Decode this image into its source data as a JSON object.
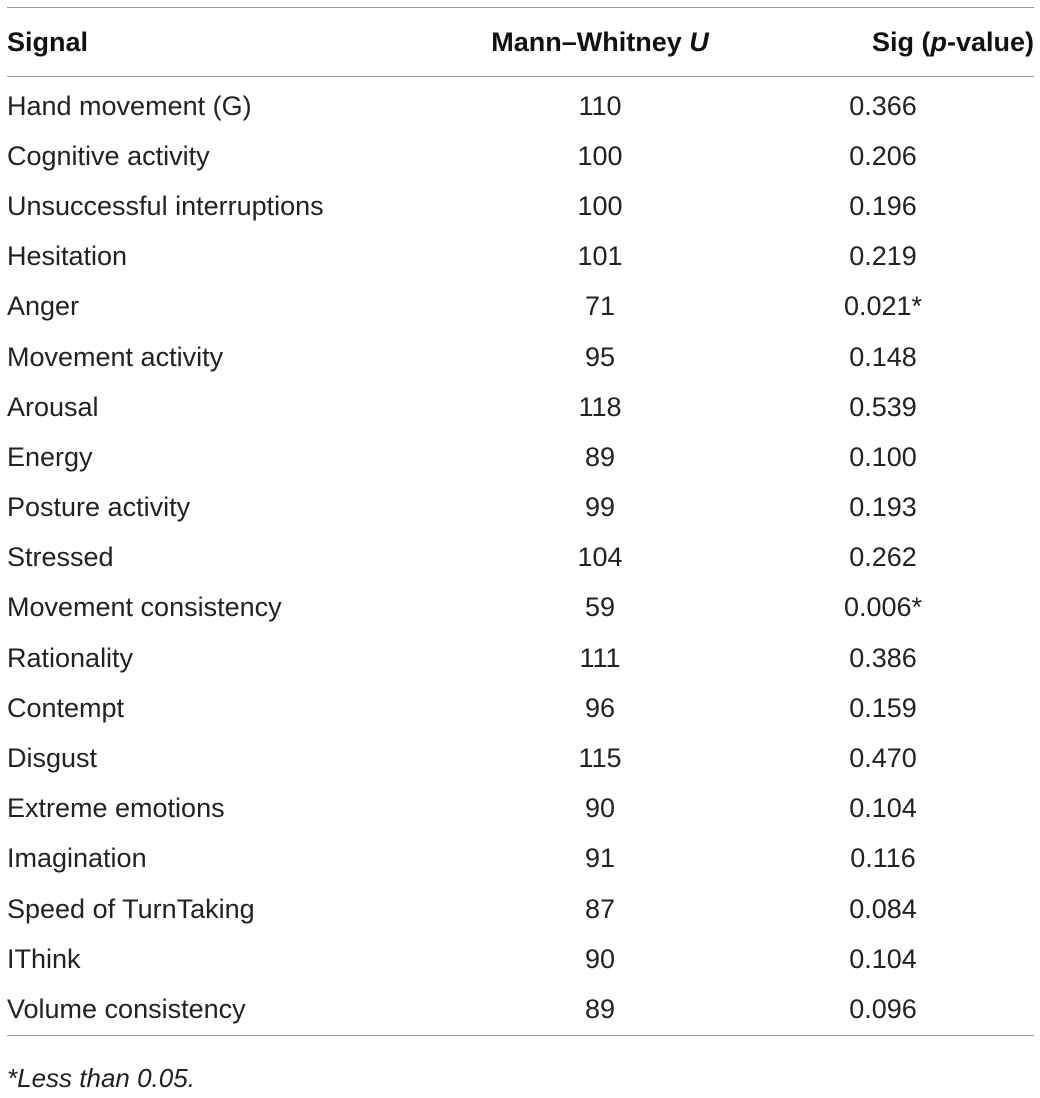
{
  "table": {
    "headers": {
      "signal": "Signal",
      "u_label": "Mann–Whitney ",
      "u_italic": "U",
      "p_prefix": "Sig (",
      "p_italic": "p",
      "p_suffix": "-value)"
    },
    "rows": [
      {
        "signal": "Hand movement (G)",
        "u": "110",
        "p": "0.366"
      },
      {
        "signal": "Cognitive activity",
        "u": "100",
        "p": "0.206"
      },
      {
        "signal": "Unsuccessful interruptions",
        "u": "100",
        "p": "0.196"
      },
      {
        "signal": "Hesitation",
        "u": "101",
        "p": "0.219"
      },
      {
        "signal": "Anger",
        "u": "71",
        "p": "0.021*"
      },
      {
        "signal": "Movement activity",
        "u": "95",
        "p": "0.148"
      },
      {
        "signal": "Arousal",
        "u": "118",
        "p": "0.539"
      },
      {
        "signal": "Energy",
        "u": "89",
        "p": "0.100"
      },
      {
        "signal": "Posture activity",
        "u": "99",
        "p": "0.193"
      },
      {
        "signal": "Stressed",
        "u": "104",
        "p": "0.262"
      },
      {
        "signal": "Movement consistency",
        "u": "59",
        "p": "0.006*"
      },
      {
        "signal": "Rationality",
        "u": "111",
        "p": "0.386"
      },
      {
        "signal": "Contempt",
        "u": "96",
        "p": "0.159"
      },
      {
        "signal": "Disgust",
        "u": "115",
        "p": "0.470"
      },
      {
        "signal": "Extreme emotions",
        "u": "90",
        "p": "0.104"
      },
      {
        "signal": "Imagination",
        "u": "91",
        "p": "0.116"
      },
      {
        "signal": "Speed of TurnTaking",
        "u": "87",
        "p": "0.084"
      },
      {
        "signal": "IThink",
        "u": "90",
        "p": "0.104"
      },
      {
        "signal": "Volume consistency",
        "u": "89",
        "p": "0.096"
      }
    ]
  },
  "footnote": "*Less than 0.05.",
  "colors": {
    "rule": "#9a9a9a",
    "text": "#222222"
  }
}
